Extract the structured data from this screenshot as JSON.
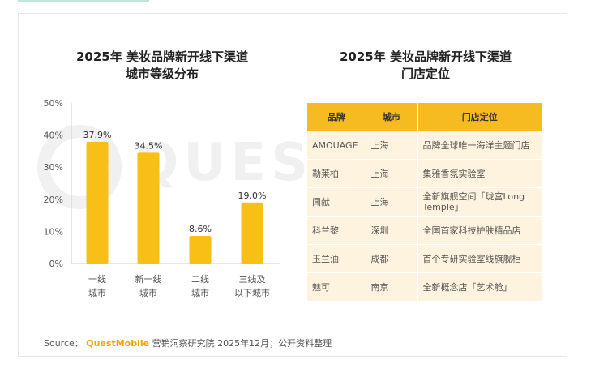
{
  "source": {
    "label": "Source：",
    "brand": "QuestMobile",
    "text": "营销洞察研究院 2025年12月；公开资料整理"
  },
  "watermark": "QUEST",
  "chart_data": {
    "type": "bar",
    "title": [
      "2025年 美妆品牌新开线下渠道",
      "城市等级分布"
    ],
    "categories": [
      [
        "一线",
        "城市"
      ],
      [
        "新一线",
        "城市"
      ],
      [
        "二线",
        "城市"
      ],
      [
        "三线及",
        "以下城市"
      ]
    ],
    "values": [
      37.9,
      34.5,
      8.6,
      19.0
    ],
    "value_labels": [
      "37.9%",
      "34.5%",
      "8.6%",
      "19.0%"
    ],
    "yticks": [
      "0%",
      "10%",
      "20%",
      "30%",
      "40%",
      "50%"
    ],
    "ylim": [
      0,
      50
    ],
    "grid": false,
    "bar_color": "#f8bf17"
  },
  "table": {
    "title": [
      "2025年 美妆品牌新开线下渠道",
      "门店定位"
    ],
    "headers": [
      "品牌",
      "城市",
      "门店定位"
    ],
    "rows": [
      [
        "AMOUAGE",
        "上海",
        "品牌全球唯一海洋主题门店"
      ],
      [
        "勒莱柏",
        "上海",
        "集雅香氛实验室"
      ],
      [
        "闻献",
        "上海",
        "全新旗舰空间「珑宫Long Temple」"
      ],
      [
        "科兰黎",
        "深圳",
        "全国首家科技护肤精品店"
      ],
      [
        "玉兰油",
        "成都",
        "首个专研实验室线旗舰柜"
      ],
      [
        "魅可",
        "南京",
        "全新概念店「艺术舱」"
      ]
    ]
  }
}
